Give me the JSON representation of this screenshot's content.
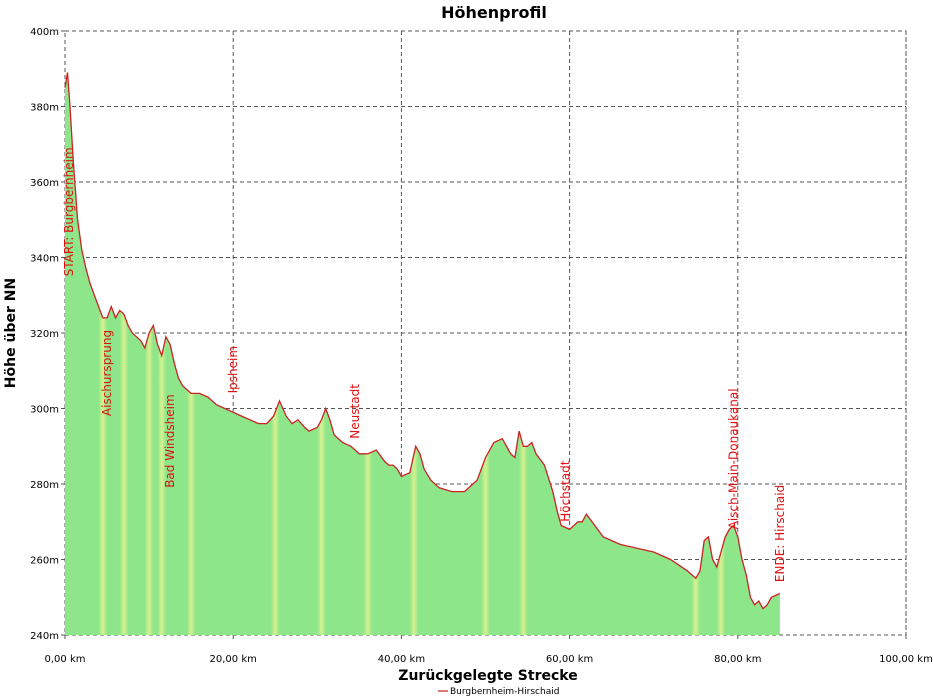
{
  "chart_data": {
    "type": "area",
    "title": "Höhenprofil",
    "xlabel": "Zurückgelegte Strecke",
    "ylabel": "Höhe über NN",
    "xlim": [
      0,
      100
    ],
    "ylim": [
      240,
      400
    ],
    "x_ticks": [
      0,
      20,
      40,
      60,
      80,
      100
    ],
    "x_tick_labels": [
      "0,00 km",
      "20,00 km",
      "40,00 km",
      "60,00 km",
      "80,00 km",
      "100,00 km"
    ],
    "y_ticks": [
      240,
      260,
      280,
      300,
      320,
      340,
      360,
      380,
      400
    ],
    "y_tick_labels": [
      "240m",
      "260m",
      "280m",
      "300m",
      "320m",
      "340m",
      "360m",
      "380m",
      "400m"
    ],
    "grid": true,
    "legend_position": "bottom",
    "series": [
      {
        "name": "Burgbernheim-Hirschaid",
        "color": "#cc2222",
        "fill": "#8ee68a",
        "x": [
          0,
          0.3,
          0.6,
          1.0,
          1.5,
          2.0,
          2.5,
          3.0,
          3.5,
          4.0,
          4.5,
          5.0,
          5.5,
          6.0,
          6.5,
          7.0,
          7.5,
          8.0,
          8.5,
          9.0,
          9.5,
          10.0,
          10.5,
          11.0,
          11.5,
          12.0,
          12.5,
          13.0,
          13.5,
          14.0,
          15.0,
          16.0,
          17.0,
          18.0,
          19.0,
          20.0,
          21.0,
          22.0,
          23.0,
          24.0,
          24.8,
          25.5,
          26.3,
          27.0,
          27.7,
          28.5,
          29.0,
          30.0,
          30.5,
          31.0,
          31.5,
          32.0,
          33.0,
          34.0,
          35.0,
          36.0,
          37.0,
          38.0,
          38.5,
          39.0,
          39.5,
          40.0,
          41.0,
          41.7,
          42.2,
          42.7,
          43.5,
          44.5,
          46.0,
          47.5,
          49.0,
          50.0,
          51.0,
          52.0,
          52.5,
          53.0,
          53.5,
          54.0,
          54.5,
          55.0,
          55.5,
          56.0,
          57.0,
          58.0,
          58.5,
          59.0,
          60.0,
          61.0,
          61.5,
          62.0,
          63.0,
          64.0,
          66.0,
          68.0,
          70.0,
          72.0,
          74.0,
          75.0,
          75.5,
          76.0,
          76.5,
          77.0,
          77.5,
          78.0,
          78.5,
          79.0,
          79.5,
          80.0,
          80.5,
          81.0,
          81.5,
          82.0,
          82.5,
          83.0,
          83.5,
          84.0,
          85.0
        ],
        "y": [
          385,
          389,
          380,
          365,
          350,
          342,
          337,
          333,
          330,
          327,
          324,
          324,
          327,
          324,
          326,
          325,
          322,
          320,
          319,
          318,
          316,
          320,
          322,
          317,
          314,
          319,
          317,
          312,
          308,
          306,
          304,
          304,
          303,
          301,
          300,
          299,
          298,
          297,
          296,
          296,
          298,
          302,
          298,
          296,
          297,
          295,
          294,
          295,
          297,
          300,
          297,
          293,
          291,
          290,
          288,
          288,
          289,
          286,
          285,
          285,
          284,
          282,
          283,
          290,
          288,
          284,
          281,
          279,
          278,
          278,
          281,
          287,
          291,
          292,
          290,
          288,
          287,
          294,
          290,
          290,
          291,
          288,
          285,
          278,
          273,
          269,
          268,
          270,
          270,
          272,
          269,
          266,
          264,
          263,
          262,
          260,
          257,
          255,
          257,
          265,
          266,
          260,
          258,
          262,
          266,
          268,
          269,
          266,
          260,
          256,
          250,
          248,
          249,
          247,
          248,
          250,
          251
        ]
      }
    ],
    "annotations": [
      {
        "text": "START: Burgbernheim",
        "x": 0.5
      },
      {
        "text": "Aischursprung",
        "x": 5.0
      },
      {
        "text": "Bad Windsheim",
        "x": 12.5
      },
      {
        "text": "Ipsheim",
        "x": 20.0
      },
      {
        "text": "Neustadt",
        "x": 34.5
      },
      {
        "text": "Höchstadt",
        "x": 59.5
      },
      {
        "text": "Aisch-Main-Donaukanal",
        "x": 79.5
      },
      {
        "text": "ENDE: Hirschaid",
        "x": 85.0
      }
    ]
  }
}
